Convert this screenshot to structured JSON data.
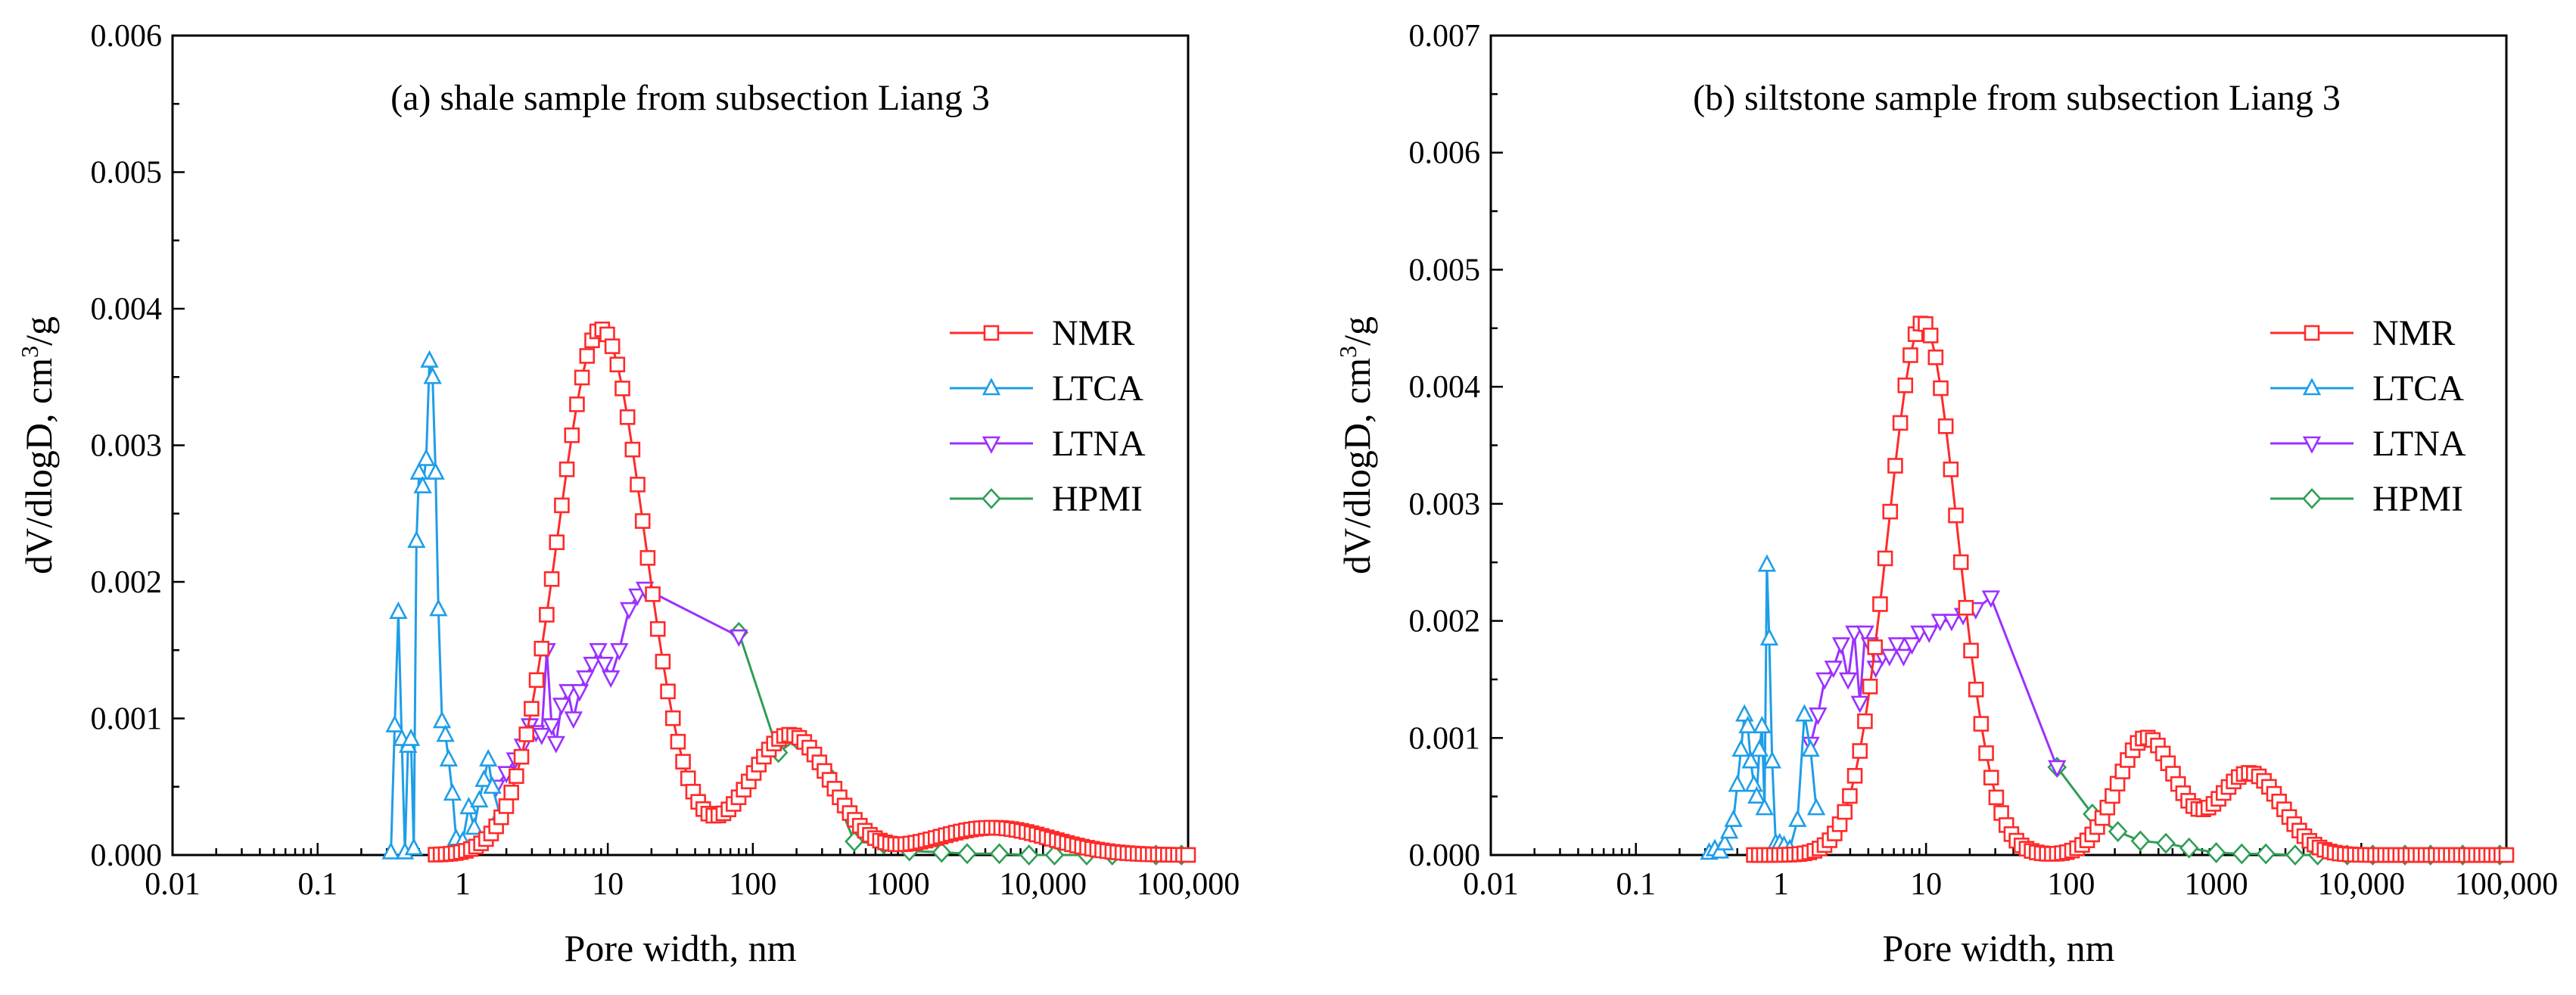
{
  "chart_data": [
    {
      "type": "line",
      "title": "(a) shale sample from subsection Liang 3",
      "xlabel": "Pore width, nm",
      "ylabel_main": "dV/dlogD, cm",
      "ylabel_sup": "3",
      "ylabel_tail": "/g",
      "xscale": "log",
      "xlim": [
        0.01,
        100000
      ],
      "ylim": [
        0,
        0.006
      ],
      "xticks": [
        {
          "value": 0.01,
          "label": "0.01"
        },
        {
          "value": 0.1,
          "label": "0.1"
        },
        {
          "value": 1,
          "label": "1"
        },
        {
          "value": 10,
          "label": "10"
        },
        {
          "value": 100,
          "label": "100"
        },
        {
          "value": 1000,
          "label": "1000"
        },
        {
          "value": 10000,
          "label": "10,000"
        },
        {
          "value": 100000,
          "label": "100,000"
        }
      ],
      "yticks": [
        {
          "value": 0,
          "label": "0.000"
        },
        {
          "value": 0.001,
          "label": "0.001"
        },
        {
          "value": 0.002,
          "label": "0.002"
        },
        {
          "value": 0.003,
          "label": "0.003"
        },
        {
          "value": 0.004,
          "label": "0.004"
        },
        {
          "value": 0.005,
          "label": "0.005"
        },
        {
          "value": 0.006,
          "label": "0.006"
        }
      ],
      "legend_position": "right-middle",
      "series": [
        {
          "name": "NMR",
          "color": "#ff2a2a",
          "marker": "square",
          "generator": "nmr",
          "range": [
            0.65,
            100000
          ],
          "npoints": 150,
          "components": [
            {
              "peak": 0.00385,
              "center": 9,
              "sigma": 0.3
            },
            {
              "peak": 0.00088,
              "center": 180,
              "sigma": 0.28
            },
            {
              "peak": 0.0002,
              "center": 4500,
              "sigma": 0.4
            }
          ]
        },
        {
          "name": "LTCA",
          "color": "#1e9ee8",
          "marker": "triangle-up",
          "x": [
            0.32,
            0.34,
            0.36,
            0.38,
            0.4,
            0.42,
            0.44,
            0.46,
            0.48,
            0.5,
            0.53,
            0.56,
            0.59,
            0.62,
            0.65,
            0.68,
            0.72,
            0.76,
            0.8,
            0.85,
            0.9,
            0.95,
            1.0,
            1.1,
            1.2,
            1.3,
            1.4,
            1.5,
            1.6,
            1.8
          ],
          "y": [
            2e-05,
            0.00095,
            0.00178,
            0.00085,
            2e-05,
            0.0008,
            0.00085,
            5e-05,
            0.0023,
            0.0028,
            0.0027,
            0.0029,
            0.00362,
            0.0035,
            0.0028,
            0.0018,
            0.00098,
            0.00088,
            0.0007,
            0.00045,
            0.00012,
            2e-05,
            0.0001,
            0.00035,
            0.0002,
            0.0004,
            0.00055,
            0.0007,
            0.0005,
            0.0003
          ]
        },
        {
          "name": "LTNA",
          "color": "#9b30ff",
          "marker": "triangle-down",
          "x": [
            1.7,
            2.0,
            2.3,
            2.6,
            2.9,
            3.2,
            3.5,
            3.8,
            4.1,
            4.4,
            4.8,
            5.3,
            5.8,
            6.4,
            7.0,
            7.8,
            8.6,
            9.5,
            10.5,
            12,
            14,
            16,
            18,
            80
          ],
          "y": [
            0.0005,
            0.0006,
            0.0007,
            0.0008,
            0.00095,
            0.0009,
            0.00088,
            0.0015,
            0.00095,
            0.00082,
            0.0011,
            0.0012,
            0.001,
            0.0012,
            0.0013,
            0.0014,
            0.0015,
            0.0014,
            0.0013,
            0.0015,
            0.0018,
            0.0019,
            0.00195,
            0.0016
          ]
        },
        {
          "name": "HPMI",
          "color": "#2e9e55",
          "marker": "diamond",
          "x": [
            80,
            150,
            200,
            320,
            500,
            800,
            1200,
            2000,
            3000,
            5000,
            8000,
            12000,
            20000,
            30000,
            60000,
            90000
          ],
          "y": [
            0.00163,
            0.00075,
            0.00085,
            0.0006,
            0.0001,
            8e-05,
            3e-05,
            2e-05,
            1e-05,
            1e-05,
            0.0,
            0.0,
            0.0,
            0.0,
            0.0,
            0.0
          ]
        }
      ]
    },
    {
      "type": "line",
      "title": "(b) siltstone sample from subsection Liang 3",
      "xlabel": "Pore width, nm",
      "ylabel_main": "dV/dlogD, cm",
      "ylabel_sup": "3",
      "ylabel_tail": "/g",
      "xscale": "log",
      "xlim": [
        0.01,
        100000
      ],
      "ylim": [
        0,
        0.007
      ],
      "xticks": [
        {
          "value": 0.01,
          "label": "0.01"
        },
        {
          "value": 0.1,
          "label": "0.1"
        },
        {
          "value": 1,
          "label": "1"
        },
        {
          "value": 10,
          "label": "10"
        },
        {
          "value": 100,
          "label": "100"
        },
        {
          "value": 1000,
          "label": "1000"
        },
        {
          "value": 10000,
          "label": "10,000"
        },
        {
          "value": 100000,
          "label": "100,000"
        }
      ],
      "yticks": [
        {
          "value": 0,
          "label": "0.000"
        },
        {
          "value": 0.001,
          "label": "0.001"
        },
        {
          "value": 0.002,
          "label": "0.002"
        },
        {
          "value": 0.003,
          "label": "0.003"
        },
        {
          "value": 0.004,
          "label": "0.004"
        },
        {
          "value": 0.005,
          "label": "0.005"
        },
        {
          "value": 0.006,
          "label": "0.006"
        },
        {
          "value": 0.007,
          "label": "0.007"
        }
      ],
      "legend_position": "right-middle",
      "series": [
        {
          "name": "NMR",
          "color": "#ff2a2a",
          "marker": "square",
          "generator": "nmr",
          "range": [
            0.65,
            100000
          ],
          "npoints": 150,
          "components": [
            {
              "peak": 0.00455,
              "center": 9.5,
              "sigma": 0.24
            },
            {
              "peak": 0.001,
              "center": 330,
              "sigma": 0.2
            },
            {
              "peak": 0.0007,
              "center": 1700,
              "sigma": 0.22
            }
          ]
        },
        {
          "name": "LTCA",
          "color": "#1e9ee8",
          "marker": "triangle-up",
          "x": [
            0.32,
            0.35,
            0.38,
            0.41,
            0.44,
            0.47,
            0.5,
            0.53,
            0.56,
            0.59,
            0.62,
            0.65,
            0.68,
            0.71,
            0.74,
            0.77,
            0.8,
            0.83,
            0.87,
            0.92,
            0.98,
            1.05,
            1.15,
            1.3,
            1.45,
            1.6,
            1.75
          ],
          "y": [
            2e-05,
            5e-05,
            3e-05,
            0.0001,
            0.0002,
            0.0003,
            0.0006,
            0.0009,
            0.0012,
            0.0011,
            0.0008,
            0.0006,
            0.0005,
            0.0009,
            0.0011,
            0.0004,
            0.00248,
            0.00185,
            0.0008,
            0.0001,
            0.0001,
            8e-05,
            5e-05,
            0.0003,
            0.0012,
            0.0009,
            0.0004
          ]
        },
        {
          "name": "LTNA",
          "color": "#9b30ff",
          "marker": "triangle-down",
          "x": [
            1.6,
            1.8,
            2.0,
            2.3,
            2.6,
            2.9,
            3.2,
            3.5,
            3.8,
            4.1,
            4.5,
            5.0,
            5.6,
            6.3,
            7.0,
            8.0,
            9.0,
            10.5,
            12.5,
            15,
            18,
            22,
            28,
            80
          ],
          "y": [
            0.00095,
            0.0012,
            0.0015,
            0.0016,
            0.0018,
            0.0015,
            0.0019,
            0.0013,
            0.0019,
            0.0018,
            0.0016,
            0.0017,
            0.0017,
            0.0018,
            0.0017,
            0.0018,
            0.0019,
            0.0019,
            0.002,
            0.002,
            0.00205,
            0.0021,
            0.0022,
            0.00075
          ]
        },
        {
          "name": "HPMI",
          "color": "#2e9e55",
          "marker": "diamond",
          "x": [
            80,
            140,
            210,
            300,
            450,
            650,
            1000,
            1500,
            2200,
            3500,
            5000,
            8000,
            12000,
            20000,
            30000,
            50000,
            90000
          ],
          "y": [
            0.00075,
            0.00035,
            0.0002,
            0.00012,
            0.0001,
            6e-05,
            2e-05,
            1e-05,
            1e-05,
            0.0,
            0.0,
            0.0,
            0.0,
            0.0,
            0.0,
            0.0,
            0.0
          ]
        }
      ]
    }
  ]
}
